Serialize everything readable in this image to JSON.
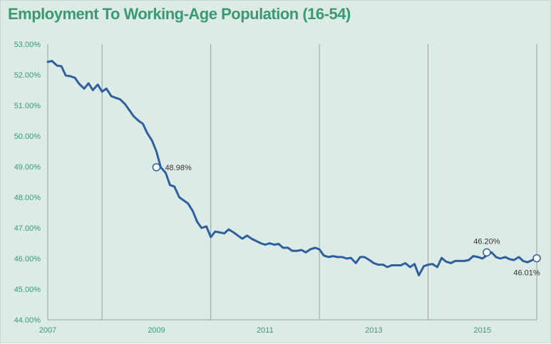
{
  "chart_data": {
    "type": "line",
    "title": "Employment To Working-Age Population (16-54)",
    "xlabel": "",
    "ylabel": "",
    "x_range": [
      2007.0,
      2016.0
    ],
    "ylim": [
      44.0,
      53.0
    ],
    "y_ticks": [
      {
        "value": 53,
        "label": "53.00%"
      },
      {
        "value": 52,
        "label": "52.00%"
      },
      {
        "value": 51,
        "label": "51.00%"
      },
      {
        "value": 50,
        "label": "50.00%"
      },
      {
        "value": 49,
        "label": "49.00%"
      },
      {
        "value": 48,
        "label": "48.00%"
      },
      {
        "value": 47,
        "label": "47.00%"
      },
      {
        "value": 46,
        "label": "46.00%"
      },
      {
        "value": 45,
        "label": "45.00%"
      },
      {
        "value": 44,
        "label": "44.00%"
      }
    ],
    "x_ticks": [
      {
        "value": 2007,
        "label": "2007"
      },
      {
        "value": 2009,
        "label": "2009"
      },
      {
        "value": 2011,
        "label": "2011"
      },
      {
        "value": 2013,
        "label": "2013"
      },
      {
        "value": 2015,
        "label": "2015"
      }
    ],
    "vertical_gridlines": [
      2008,
      2010,
      2012,
      2014,
      2016
    ],
    "grid": "vertical",
    "colors": {
      "line": "#2e5f9e",
      "text": "#3a9a72",
      "grid": "#9aa09c",
      "axis": "#9aa09c"
    },
    "series": [
      {
        "name": "",
        "points": [
          [
            2007.0,
            52.42
          ],
          [
            2007.08,
            52.45
          ],
          [
            2007.17,
            52.3
          ],
          [
            2007.25,
            52.28
          ],
          [
            2007.33,
            51.98
          ],
          [
            2007.42,
            51.95
          ],
          [
            2007.5,
            51.9
          ],
          [
            2007.58,
            51.7
          ],
          [
            2007.67,
            51.55
          ],
          [
            2007.75,
            51.72
          ],
          [
            2007.83,
            51.5
          ],
          [
            2007.92,
            51.68
          ],
          [
            2008.0,
            51.45
          ],
          [
            2008.08,
            51.55
          ],
          [
            2008.17,
            51.3
          ],
          [
            2008.25,
            51.25
          ],
          [
            2008.33,
            51.2
          ],
          [
            2008.42,
            51.05
          ],
          [
            2008.5,
            50.85
          ],
          [
            2008.58,
            50.65
          ],
          [
            2008.67,
            50.5
          ],
          [
            2008.75,
            50.4
          ],
          [
            2008.83,
            50.1
          ],
          [
            2008.92,
            49.85
          ],
          [
            2009.0,
            49.5
          ],
          [
            2009.08,
            48.98
          ],
          [
            2009.17,
            48.8
          ],
          [
            2009.25,
            48.4
          ],
          [
            2009.33,
            48.35
          ],
          [
            2009.42,
            48.0
          ],
          [
            2009.5,
            47.9
          ],
          [
            2009.58,
            47.8
          ],
          [
            2009.67,
            47.55
          ],
          [
            2009.75,
            47.2
          ],
          [
            2009.83,
            47.0
          ],
          [
            2009.92,
            47.05
          ],
          [
            2010.0,
            46.7
          ],
          [
            2010.08,
            46.88
          ],
          [
            2010.17,
            46.85
          ],
          [
            2010.25,
            46.82
          ],
          [
            2010.33,
            46.95
          ],
          [
            2010.42,
            46.85
          ],
          [
            2010.5,
            46.75
          ],
          [
            2010.58,
            46.65
          ],
          [
            2010.67,
            46.75
          ],
          [
            2010.75,
            46.65
          ],
          [
            2010.83,
            46.58
          ],
          [
            2010.92,
            46.5
          ],
          [
            2011.0,
            46.45
          ],
          [
            2011.08,
            46.5
          ],
          [
            2011.17,
            46.45
          ],
          [
            2011.25,
            46.48
          ],
          [
            2011.33,
            46.35
          ],
          [
            2011.42,
            46.35
          ],
          [
            2011.5,
            46.25
          ],
          [
            2011.58,
            46.25
          ],
          [
            2011.67,
            46.28
          ],
          [
            2011.75,
            46.2
          ],
          [
            2011.83,
            46.3
          ],
          [
            2011.92,
            46.35
          ],
          [
            2012.0,
            46.3
          ],
          [
            2012.08,
            46.1
          ],
          [
            2012.17,
            46.05
          ],
          [
            2012.25,
            46.08
          ],
          [
            2012.33,
            46.05
          ],
          [
            2012.42,
            46.05
          ],
          [
            2012.5,
            46.0
          ],
          [
            2012.58,
            46.02
          ],
          [
            2012.67,
            45.85
          ],
          [
            2012.75,
            46.05
          ],
          [
            2012.83,
            46.05
          ],
          [
            2012.92,
            45.95
          ],
          [
            2013.0,
            45.85
          ],
          [
            2013.08,
            45.8
          ],
          [
            2013.17,
            45.8
          ],
          [
            2013.25,
            45.72
          ],
          [
            2013.33,
            45.78
          ],
          [
            2013.42,
            45.78
          ],
          [
            2013.5,
            45.78
          ],
          [
            2013.58,
            45.85
          ],
          [
            2013.67,
            45.72
          ],
          [
            2013.75,
            45.82
          ],
          [
            2013.83,
            45.45
          ],
          [
            2013.92,
            45.75
          ],
          [
            2014.0,
            45.8
          ],
          [
            2014.08,
            45.82
          ],
          [
            2014.17,
            45.72
          ],
          [
            2014.25,
            46.02
          ],
          [
            2014.33,
            45.9
          ],
          [
            2014.42,
            45.85
          ],
          [
            2014.5,
            45.92
          ],
          [
            2014.58,
            45.92
          ],
          [
            2014.67,
            45.92
          ],
          [
            2014.75,
            45.95
          ],
          [
            2014.83,
            46.08
          ],
          [
            2014.92,
            46.05
          ],
          [
            2015.0,
            46.0
          ],
          [
            2015.08,
            46.1
          ],
          [
            2015.17,
            46.2
          ],
          [
            2015.25,
            46.05
          ],
          [
            2015.33,
            46.0
          ],
          [
            2015.42,
            46.05
          ],
          [
            2015.5,
            45.98
          ],
          [
            2015.58,
            45.95
          ],
          [
            2015.67,
            46.05
          ],
          [
            2015.75,
            45.92
          ],
          [
            2015.83,
            45.88
          ],
          [
            2015.92,
            45.95
          ],
          [
            2016.0,
            46.01
          ]
        ]
      }
    ],
    "annotations": [
      {
        "x": 2009.0,
        "y": 48.98,
        "label": "48.98%",
        "label_pos": "right"
      },
      {
        "x": 2015.08,
        "y": 46.2,
        "label": "46.20%",
        "label_pos": "above"
      },
      {
        "x": 2016.0,
        "y": 46.01,
        "label": "46.01%",
        "label_pos": "below-left"
      }
    ]
  }
}
